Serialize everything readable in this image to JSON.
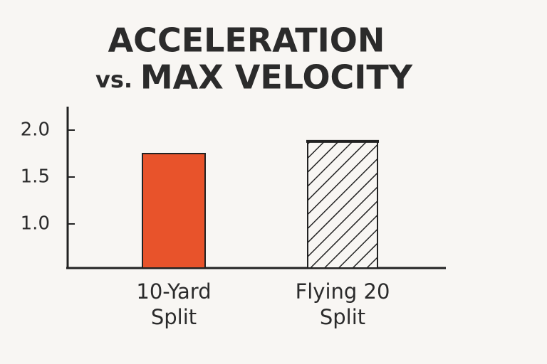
{
  "chart_data": {
    "type": "bar",
    "title": [
      "ACCELERATION",
      "vs.",
      "MAX VELOCITY"
    ],
    "title_accent_color": "#e8532b",
    "categories": [
      "10-Yard Split",
      "Flying 20 Split"
    ],
    "values": [
      1.75,
      1.88
    ],
    "colors": [
      "#e8532b",
      "#222222"
    ],
    "patterns": [
      "solid",
      "hatch"
    ],
    "ylim": [
      0.53,
      2.25
    ],
    "yticks": [
      {
        "value": 1.0,
        "label": "1.0"
      },
      {
        "value": 1.5,
        "label": "1.5"
      },
      {
        "value": 2.0,
        "label": "2.0"
      }
    ],
    "grid": false
  }
}
